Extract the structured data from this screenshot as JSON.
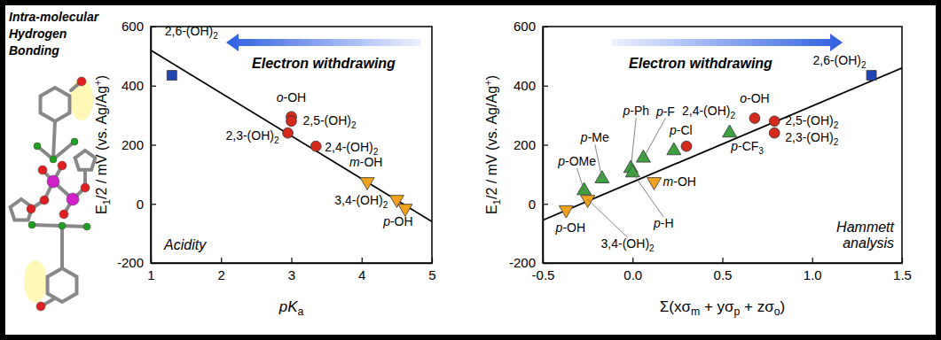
{
  "figure_text": {
    "title_lines": [
      "Intra-molecular",
      "Hydrogen",
      "Bonding"
    ]
  },
  "chart_data": [
    {
      "type": "scatter",
      "x_label": "pKa",
      "y_label": "E1/2 / mV (vs. Ag/Ag+)",
      "xlim": [
        1,
        5
      ],
      "xticks": [
        1,
        2,
        3,
        4,
        5
      ],
      "ylim": [
        -200,
        600
      ],
      "yticks": [
        -200,
        0,
        200,
        400,
        600
      ],
      "grid": false,
      "annotations": [
        "Electron withdrawing",
        "Acidity"
      ],
      "series": [
        {
          "type": "line",
          "color": "#000000",
          "x": [
            1,
            5
          ],
          "values": [
            520,
            -60
          ]
        },
        {
          "type": "scatter",
          "color": "#1f45b5",
          "marker": "square",
          "x": [
            1.3
          ],
          "values": [
            435
          ],
          "labels": [
            "2,6-(OH)2"
          ]
        },
        {
          "type": "scatter",
          "color": "#d42a1e",
          "marker": "circle",
          "x": [
            3.0,
            3.0,
            2.95,
            3.35
          ],
          "values": [
            295,
            280,
            240,
            195
          ],
          "labels": [
            "o-OH",
            "2,5-(OH)2",
            "2,3-(OH)2",
            "2,4-(OH)2"
          ]
        },
        {
          "type": "scatter",
          "color": "#f0a21e",
          "marker": "triangle-down",
          "x": [
            4.08,
            4.5,
            4.62
          ],
          "values": [
            75,
            15,
            -15
          ],
          "labels": [
            "m-OH",
            "3,4-(OH)2",
            "p-OH"
          ]
        }
      ]
    },
    {
      "type": "scatter",
      "x_label": "Σ(xσm + yσp + zσo)",
      "y_label": "E1/2 / mV (vs. Ag/Ag+)",
      "xlim": [
        -0.5,
        1.5
      ],
      "xticks": [
        -0.5,
        {
          "value": 0,
          "label": "0.0"
        },
        0.5,
        {
          "value": 1,
          "label": "1.0"
        },
        1.5
      ],
      "ylim": [
        -200,
        600
      ],
      "yticks": [
        -200,
        0,
        200,
        400,
        600
      ],
      "grid": false,
      "annotations": [
        "Electron withdrawing",
        "Hammett analysis"
      ],
      "series": [
        {
          "type": "line",
          "color": "#000000",
          "x": [
            -0.5,
            1.5
          ],
          "values": [
            -55,
            460
          ]
        },
        {
          "type": "scatter",
          "color": "#1f45b5",
          "marker": "square",
          "x": [
            1.33
          ],
          "values": [
            435
          ],
          "labels": [
            "2,6-(OH)2"
          ]
        },
        {
          "type": "scatter",
          "color": "#d42a1e",
          "marker": "circle",
          "x": [
            0.68,
            0.79,
            0.79,
            0.3
          ],
          "values": [
            290,
            280,
            240,
            195
          ],
          "labels": [
            "o-OH",
            "2,5-(OH)2",
            "2,3-(OH)2",
            "2,4-(OH)2"
          ]
        },
        {
          "type": "scatter",
          "color": "#3fa03f",
          "marker": "triangle-up",
          "x": [
            -0.27,
            -0.17,
            -0.01,
            0,
            0.06,
            0.23,
            0.54
          ],
          "values": [
            45,
            85,
            120,
            105,
            155,
            180,
            240
          ],
          "labels": [
            "p-OMe",
            "p-Me",
            "p-Ph",
            "p-H",
            "p-F",
            "p-Cl",
            "p-CF3"
          ]
        },
        {
          "type": "scatter",
          "color": "#f0a21e",
          "marker": "triangle-down",
          "x": [
            -0.37,
            -0.25,
            0.12
          ],
          "values": [
            -20,
            15,
            75
          ],
          "labels": [
            "p-OH",
            "3,4-(OH)2",
            "m-OH"
          ]
        }
      ]
    }
  ]
}
